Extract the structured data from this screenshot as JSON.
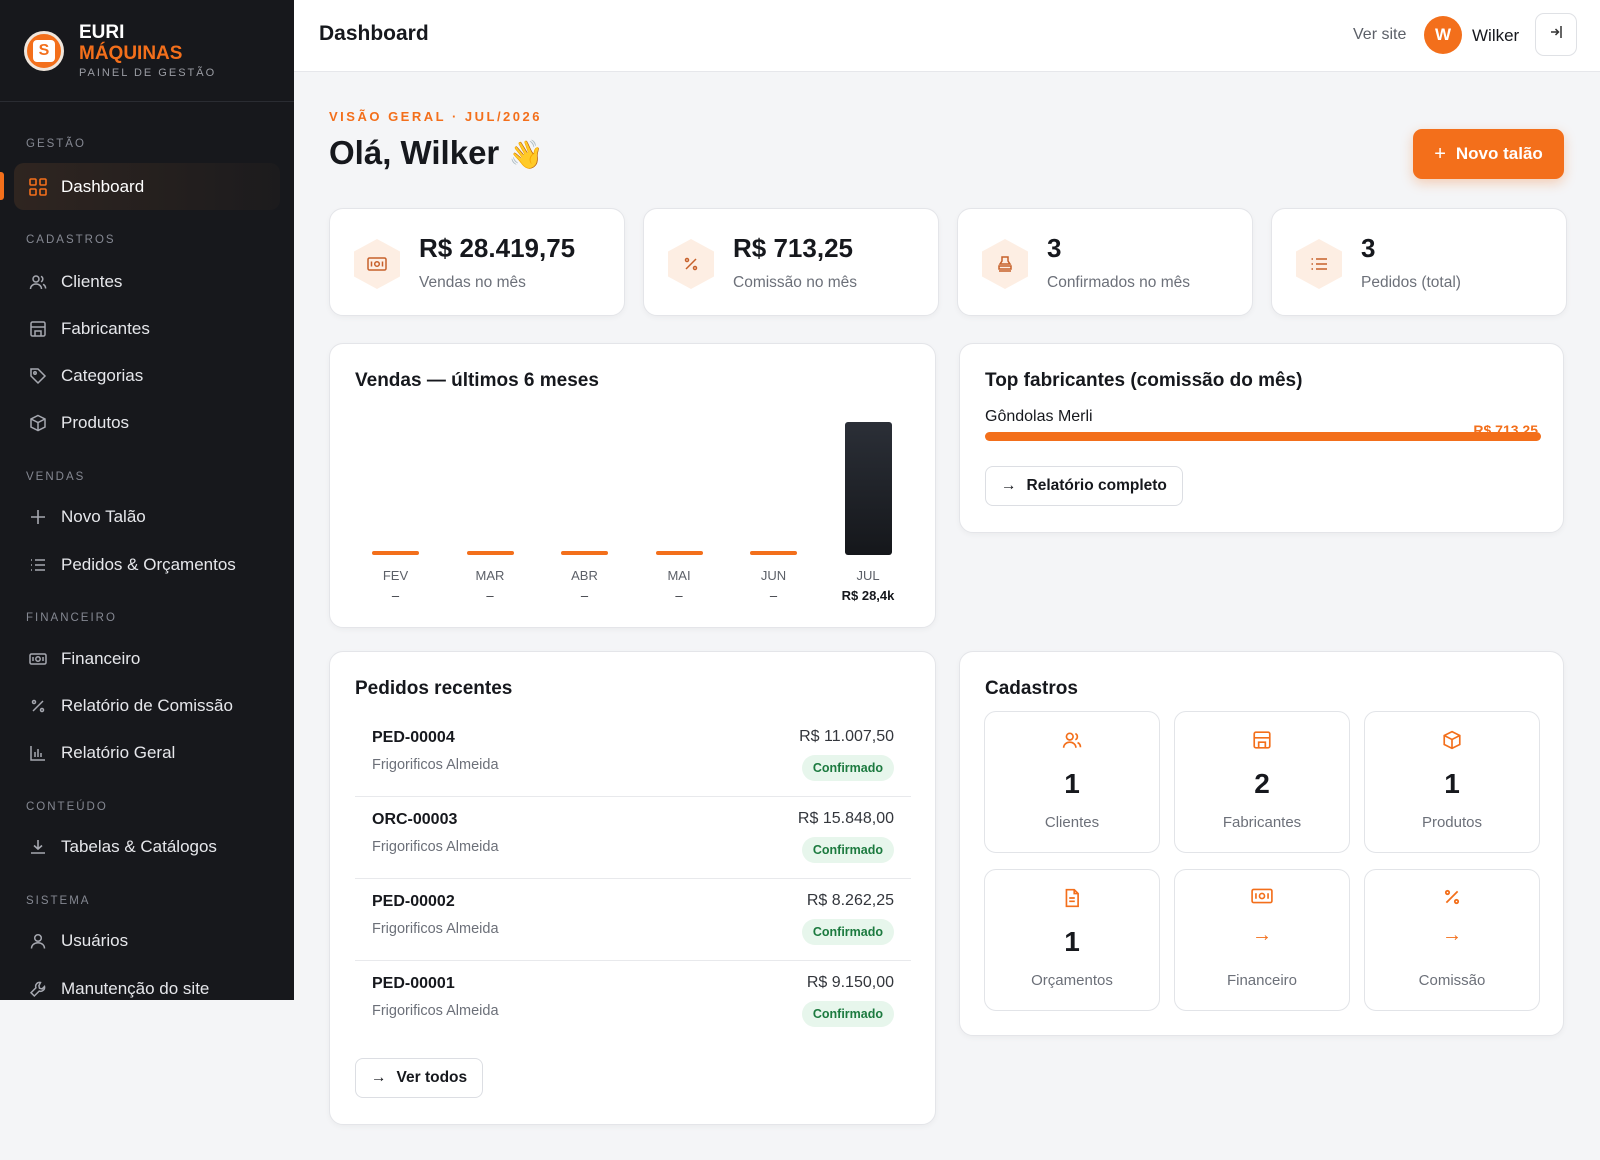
{
  "brand": {
    "line1": "EURI",
    "line2": "MÁQUINAS",
    "line3": "PAINEL DE GESTÃO",
    "logo_letter": "S"
  },
  "sidebar": {
    "sections": {
      "gestao": "GESTÃO",
      "cadastros": "CADASTROS",
      "vendas": "VENDAS",
      "financeiro": "FINANCEIRO",
      "conteudo": "CONTEÚDO",
      "sistema": "SISTEMA"
    },
    "items": {
      "dashboard": "Dashboard",
      "clientes": "Clientes",
      "fabricantes": "Fabricantes",
      "categorias": "Categorias",
      "produtos": "Produtos",
      "novo_talao": "Novo Talão",
      "pedidos": "Pedidos & Orçamentos",
      "financeiro": "Financeiro",
      "rel_comissao": "Relatório de Comissão",
      "rel_geral": "Relatório Geral",
      "tabelas": "Tabelas & Catálogos",
      "usuarios": "Usuários",
      "manutencao": "Manutenção do site"
    }
  },
  "header": {
    "title": "Dashboard",
    "ver_site": "Ver site",
    "avatar_letter": "W",
    "user": "Wilker"
  },
  "main": {
    "eyebrow": "VISÃO GERAL · JUL/2026",
    "greeting": "Olá, Wilker",
    "wave": "👋",
    "novo_button": "Novo talão"
  },
  "stats": [
    {
      "value": "R$ 28.419,75",
      "label": "Vendas no mês",
      "icon": "cash-icon"
    },
    {
      "value": "R$ 713,25",
      "label": "Comissão no mês",
      "icon": "percent-icon"
    },
    {
      "value": "3",
      "label": "Confirmados no mês",
      "icon": "stamp-icon"
    },
    {
      "value": "3",
      "label": "Pedidos (total)",
      "icon": "list-icon"
    }
  ],
  "chart_data": {
    "type": "bar",
    "title": "Vendas — últimos 6 meses",
    "categories": [
      "FEV",
      "MAR",
      "ABR",
      "MAI",
      "JUN",
      "JUL"
    ],
    "values": [
      0,
      0,
      0,
      0,
      0,
      28419.75
    ],
    "value_labels": [
      "–",
      "–",
      "–",
      "–",
      "–",
      "R$ 28,4k"
    ],
    "colors": {
      "empty": "#f36f1b",
      "current": "#1f2228"
    }
  },
  "top_fabricantes": {
    "title": "Top fabricantes (comissão do mês)",
    "items": [
      {
        "name": "Gôndolas Merli",
        "amount": "R$ 713,25",
        "share": 1.0
      }
    ],
    "button": "Relatório completo"
  },
  "pedidos": {
    "title": "Pedidos recentes",
    "rows": [
      {
        "code": "PED-00004",
        "client": "Frigorificos Almeida",
        "amount": "R$ 11.007,50",
        "status": "Confirmado"
      },
      {
        "code": "ORC-00003",
        "client": "Frigorificos Almeida",
        "amount": "R$ 15.848,00",
        "status": "Confirmado"
      },
      {
        "code": "PED-00002",
        "client": "Frigorificos Almeida",
        "amount": "R$ 8.262,25",
        "status": "Confirmado"
      },
      {
        "code": "PED-00001",
        "client": "Frigorificos Almeida",
        "amount": "R$ 9.150,00",
        "status": "Confirmado"
      }
    ],
    "button": "Ver todos"
  },
  "cadastros": {
    "title": "Cadastros",
    "tiles": [
      {
        "value": "1",
        "label": "Clientes",
        "icon": "users-icon"
      },
      {
        "value": "2",
        "label": "Fabricantes",
        "icon": "store-icon"
      },
      {
        "value": "1",
        "label": "Produtos",
        "icon": "box-icon"
      },
      {
        "value": "1",
        "label": "Orçamentos",
        "icon": "document-icon"
      },
      {
        "value": "→",
        "label": "Financeiro",
        "icon": "cash-icon"
      },
      {
        "value": "→",
        "label": "Comissão",
        "icon": "percent-icon"
      }
    ]
  }
}
